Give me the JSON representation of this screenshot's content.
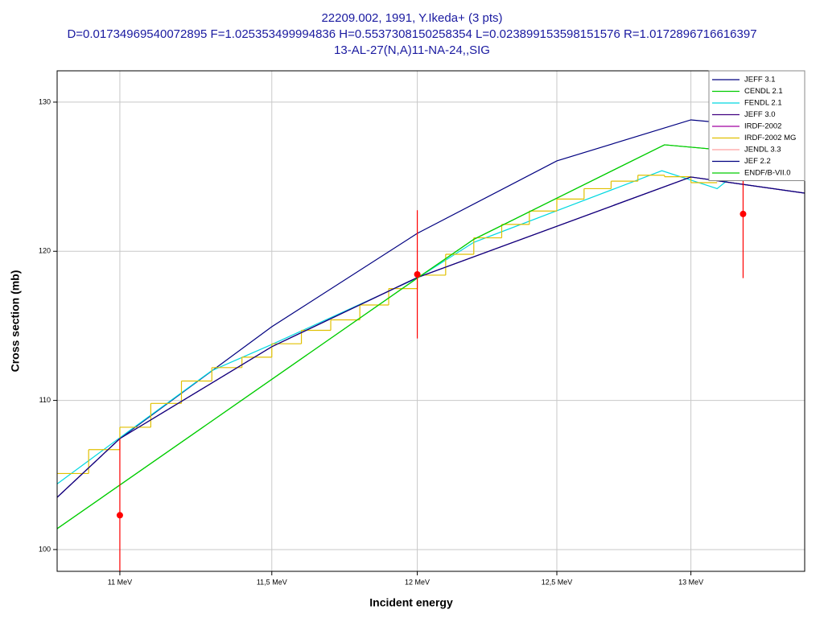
{
  "chart_data": {
    "type": "line",
    "title_lines": [
      "22209.002, 1991, Y.Ikeda+ (3 pts)",
      "D=0.01734969540072895 F=1.025353499994836 H=0.5537308150258354 L=0.02389915359815157​6 R=1.0172896716616397",
      "13-AL-27(N,A)11-NA-24,,SIG"
    ],
    "x_label": "Incident energy",
    "y_label": "Cross section (mb)",
    "xscale": "log",
    "xlim": [
      10.8,
      13.44
    ],
    "ylim": [
      98.54,
      132.1
    ],
    "xticks": [
      {
        "value": 11,
        "label": "11 MeV"
      },
      {
        "value": 11.5,
        "label": "11,5 MeV"
      },
      {
        "value": 12,
        "label": "12 MeV"
      },
      {
        "value": 12.5,
        "label": "12,5 MeV"
      },
      {
        "value": 13,
        "label": "13 MeV"
      }
    ],
    "yticks": [
      100,
      110,
      120,
      130
    ],
    "grid": true,
    "legend": "upper right",
    "series": [
      {
        "name": "JEFF 3.1",
        "color": "#000080",
        "x": [
          10.8,
          11,
          11.5,
          12,
          12.5,
          13,
          13.1
        ],
        "values": [
          103.5,
          107.44,
          114.94,
          121.2,
          126.06,
          128.81,
          128.65
        ]
      },
      {
        "name": "CENDL 2.1",
        "color": "#00cc00",
        "x": [
          10.8,
          12,
          12.2,
          12.9,
          13.07
        ],
        "values": [
          101.4,
          118.2,
          120.8,
          127.14,
          126.87
        ]
      },
      {
        "name": "FENDL 2.1",
        "color": "#00d8e0",
        "x": [
          10.8,
          11,
          11.3,
          11.5,
          12,
          12.2,
          12.89,
          13.1,
          13.15
        ],
        "values": [
          104.4,
          107.5,
          112.0,
          113.75,
          118.2,
          120.6,
          125.4,
          124.2,
          124.9
        ]
      },
      {
        "name": "JEFF 3.0",
        "color": "#400080",
        "x": [
          10.8,
          11,
          11.5,
          12,
          13,
          13.44
        ],
        "values": [
          103.5,
          107.44,
          113.6,
          118.24,
          124.98,
          123.9
        ]
      },
      {
        "name": "IRDF-2002",
        "color": "#a000a0",
        "x": [
          10.8,
          11,
          11.5,
          12,
          13,
          13.44
        ],
        "values": [
          103.5,
          107.44,
          113.6,
          118.24,
          124.98,
          123.9
        ]
      },
      {
        "name": "IRDF-2002 MG",
        "color": "#e0c000",
        "type": "step",
        "bins": [
          10.8,
          10.9,
          11.0,
          11.1,
          11.2,
          11.3,
          11.4,
          11.5,
          11.6,
          11.7,
          11.8,
          11.9,
          12.0,
          12.1,
          12.2,
          12.3,
          12.4,
          12.5,
          12.6,
          12.7,
          12.8,
          12.9,
          13.0,
          13.1
        ],
        "values": [
          105.1,
          106.7,
          108.2,
          109.8,
          111.3,
          112.2,
          112.9,
          113.8,
          114.7,
          115.4,
          116.4,
          117.5,
          118.4,
          119.8,
          120.9,
          121.8,
          122.7,
          123.5,
          124.2,
          124.7,
          125.1,
          125.0,
          124.6
        ]
      },
      {
        "name": "JENDL 3.3",
        "color": "#ffa0a0",
        "x": [
          10.8,
          11,
          11.5,
          12,
          13,
          13.44
        ],
        "values": [
          103.5,
          107.44,
          113.6,
          118.24,
          124.98,
          123.9
        ]
      },
      {
        "name": "JEF 2.2",
        "color": "#000080",
        "x": [
          10.8,
          11,
          11.5,
          12,
          13,
          13.44
        ],
        "values": [
          103.5,
          107.44,
          113.6,
          118.24,
          124.98,
          123.9
        ]
      },
      {
        "name": "ENDF/B-VII.0",
        "color": "#00cc00",
        "x": [
          10.8,
          12,
          12.2,
          12.9,
          13.07
        ],
        "values": [
          101.4,
          118.2,
          120.8,
          127.14,
          126.87
        ]
      },
      {
        "type": "points",
        "color": "#ff0000",
        "x": [
          11,
          12,
          13.2
        ],
        "values": [
          102.3,
          118.45,
          122.5
        ],
        "errors": [
          5.1,
          4.3,
          4.3
        ]
      }
    ]
  }
}
